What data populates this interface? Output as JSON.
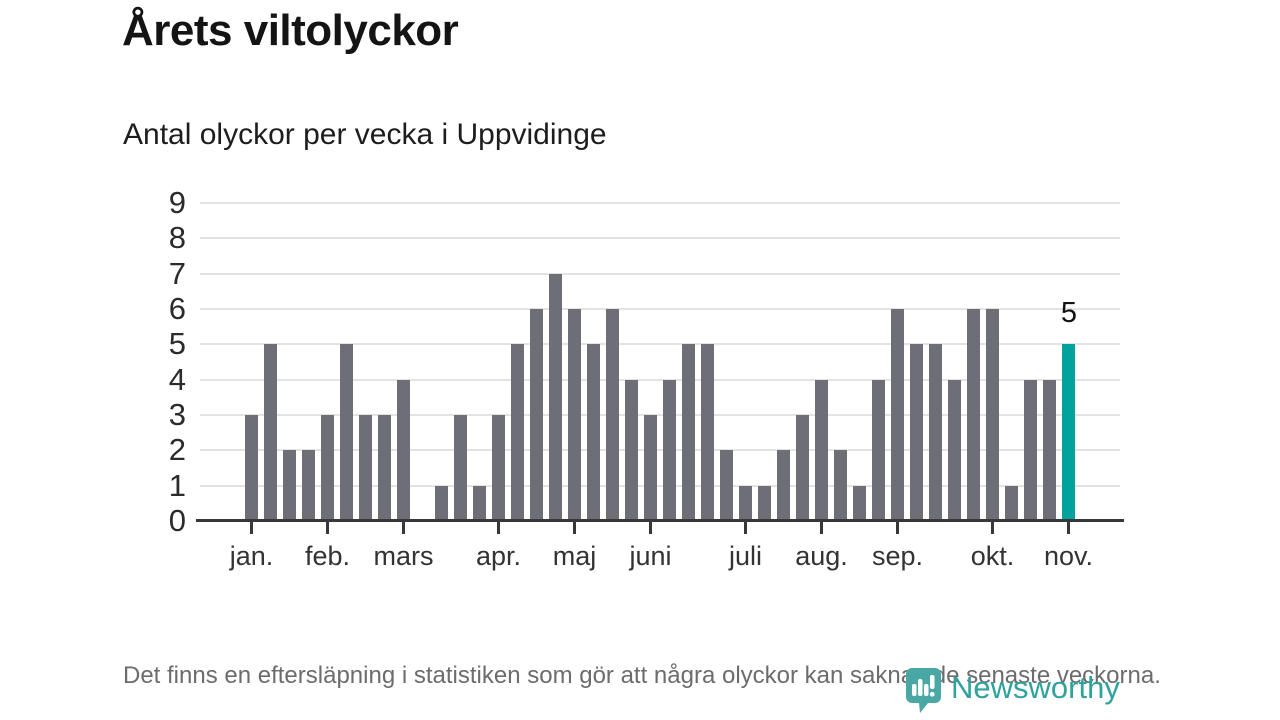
{
  "header": {
    "title": "Årets viltolyckor",
    "subtitle": "Antal olyckor per vecka i Uppvidinge"
  },
  "chart_data": {
    "type": "bar",
    "title": "Antal olyckor per vecka i Uppvidinge",
    "xlabel": "",
    "ylabel": "",
    "x_unit": "vecka",
    "ylim": [
      0,
      9
    ],
    "yticks": [
      0,
      1,
      2,
      3,
      4,
      5,
      6,
      7,
      8,
      9
    ],
    "grid": true,
    "n_weeks": 44,
    "values": [
      3,
      5,
      2,
      2,
      3,
      5,
      3,
      3,
      4,
      0,
      1,
      3,
      1,
      3,
      5,
      6,
      7,
      6,
      5,
      6,
      4,
      3,
      4,
      5,
      5,
      2,
      1,
      1,
      2,
      3,
      4,
      2,
      1,
      4,
      6,
      5,
      5,
      4,
      6,
      6,
      1,
      4,
      4,
      5
    ],
    "highlight_index": 43,
    "highlight_label": "5",
    "month_ticks": [
      {
        "label": "jan.",
        "week": 0
      },
      {
        "label": "feb.",
        "week": 4
      },
      {
        "label": "mars",
        "week": 8
      },
      {
        "label": "apr.",
        "week": 13
      },
      {
        "label": "maj",
        "week": 17
      },
      {
        "label": "juni",
        "week": 21
      },
      {
        "label": "juli",
        "week": 26
      },
      {
        "label": "aug.",
        "week": 30
      },
      {
        "label": "sep.",
        "week": 34
      },
      {
        "label": "okt.",
        "week": 39
      },
      {
        "label": "nov.",
        "week": 43
      }
    ],
    "colors": {
      "bar": "#6e6e76",
      "highlight": "#00a29b",
      "axis": "#383838",
      "grid": "#e3e3e3"
    }
  },
  "footer": {
    "note": "Det finns en eftersläpning i statistiken som gör att några olyckor kan saknas de senaste veckorna.",
    "logo_text": "Newsworthy",
    "brand_color": "#2ea39e",
    "logo_icon": "bar-chart-speech-bubble-icon"
  }
}
